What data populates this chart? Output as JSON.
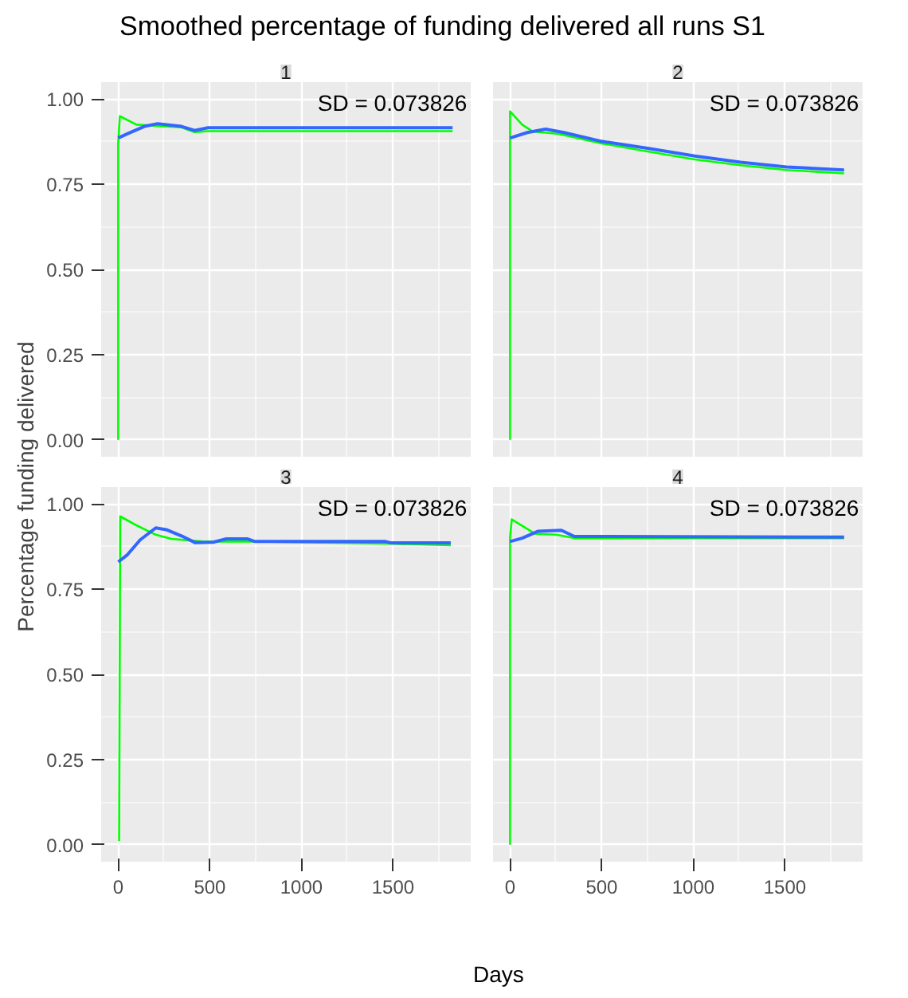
{
  "chart_data": [
    {
      "type": "line",
      "title": "Smoothed percentage of funding delivered all runs S1",
      "ylabel": "Percentage funding delivered",
      "subtitle": "1",
      "xlim": [
        -93,
        1924
      ],
      "ylim": [
        -0.05,
        1.05
      ],
      "xticks": [
        0,
        500,
        1000,
        1500
      ],
      "yticks": [
        {
          "value": 0,
          "label": "0.00"
        },
        {
          "value": 0.25,
          "label": "0.25"
        },
        {
          "value": 0.5,
          "label": "0.50"
        },
        {
          "value": 0.75,
          "label": "0.75"
        },
        {
          "value": 1,
          "label": "1.00"
        }
      ],
      "grid": true,
      "tick_labels": "y",
      "annotations": [
        "SD = 0.073826"
      ],
      "series": [
        {
          "color": "#00ff00",
          "x": [
            0,
            0,
            9,
            100,
            345,
            417,
            490,
            1825
          ],
          "values": [
            0,
            0.87,
            0.95,
            0.925,
            0.917,
            0.903,
            0.906,
            0.906
          ]
        },
        {
          "color": "#3366ff",
          "x": [
            0,
            57,
            143,
            215,
            345,
            417,
            490,
            1825
          ],
          "values": [
            0.886,
            0.9,
            0.92,
            0.928,
            0.92,
            0.908,
            0.916,
            0.916
          ]
        }
      ]
    },
    {
      "type": "line",
      "subtitle": "2",
      "xlim": [
        -93,
        1924
      ],
      "ylim": [
        -0.05,
        1.05
      ],
      "xticks": [
        0,
        500,
        1000,
        1500
      ],
      "yticks": [
        0,
        0.25,
        0.5,
        0.75,
        1
      ],
      "grid": true,
      "tick_labels": false,
      "annotations": [
        "SD = 0.073826"
      ],
      "series": [
        {
          "color": "#00ff00",
          "x": [
            0,
            0,
            66,
            123,
            266,
            500,
            757,
            1009,
            1257,
            1509,
            1823
          ],
          "values": [
            0,
            0.964,
            0.925,
            0.905,
            0.898,
            0.87,
            0.846,
            0.823,
            0.806,
            0.792,
            0.782
          ]
        },
        {
          "color": "#3366ff",
          "x": [
            0,
            94,
            194,
            294,
            500,
            757,
            1009,
            1257,
            1509,
            1823
          ],
          "values": [
            0.886,
            0.902,
            0.912,
            0.902,
            0.876,
            0.855,
            0.833,
            0.815,
            0.801,
            0.792
          ]
        }
      ]
    },
    {
      "type": "line",
      "subtitle": "3",
      "xlabel": "Days",
      "xlim": [
        -93,
        1924
      ],
      "ylim": [
        -0.05,
        1.05
      ],
      "xticks": [
        0,
        500,
        1000,
        1500
      ],
      "yticks": [
        {
          "value": 0,
          "label": "0.00"
        },
        {
          "value": 0.25,
          "label": "0.25"
        },
        {
          "value": 0.5,
          "label": "0.50"
        },
        {
          "value": 0.75,
          "label": "0.75"
        },
        {
          "value": 1,
          "label": "1.00"
        }
      ],
      "grid": true,
      "annotations": [
        "SD = 0.073826"
      ],
      "series": [
        {
          "color": "#00ff00",
          "x": [
            5,
            11,
            91,
            205,
            290,
            462,
            746,
            1459,
            1815
          ],
          "values": [
            0.01,
            0.964,
            0.94,
            0.91,
            0.898,
            0.89,
            0.89,
            0.884,
            0.879
          ]
        },
        {
          "color": "#3366ff",
          "x": [
            0,
            48,
            120,
            205,
            262,
            348,
            419,
            518,
            590,
            704,
            746,
            1459,
            1490,
            1815
          ],
          "values": [
            0.83,
            0.85,
            0.895,
            0.93,
            0.925,
            0.906,
            0.887,
            0.888,
            0.898,
            0.898,
            0.89,
            0.89,
            0.886,
            0.886
          ]
        }
      ]
    },
    {
      "type": "line",
      "subtitle": "4",
      "xlim": [
        -93,
        1924
      ],
      "ylim": [
        -0.05,
        1.05
      ],
      "xticks": [
        0,
        500,
        1000,
        1500
      ],
      "yticks": [
        0,
        0.25,
        0.5,
        0.75,
        1
      ],
      "grid": true,
      "tick_labels": "x",
      "annotations": [
        "SD = 0.073826"
      ],
      "series": [
        {
          "color": "#00ff00",
          "x": [
            0,
            0,
            9,
            66,
            137,
            251,
            351,
            1823
          ],
          "values": [
            0,
            0.9,
            0.955,
            0.936,
            0.913,
            0.91,
            0.9,
            0.9
          ]
        },
        {
          "color": "#3366ff",
          "x": [
            0,
            66,
            151,
            280,
            351,
            1823
          ],
          "values": [
            0.89,
            0.9,
            0.92,
            0.923,
            0.905,
            0.903
          ]
        }
      ]
    }
  ]
}
